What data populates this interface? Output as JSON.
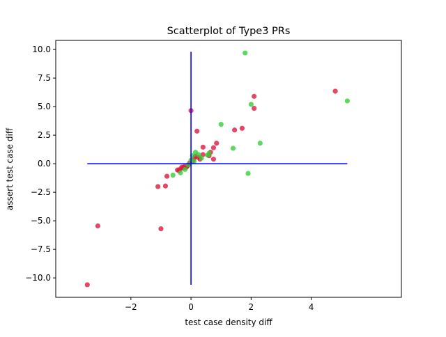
{
  "chart_data": {
    "type": "scatter",
    "title": "Scatterplot of Type3 PRs",
    "xlabel": "test case density diff",
    "ylabel": "assert test case diff",
    "xlim": [
      -4.5,
      7.0
    ],
    "ylim": [
      -11.7,
      10.8
    ],
    "x_ticks": [
      -2,
      0,
      2,
      4
    ],
    "x_tick_labels": [
      "−2",
      "0",
      "2",
      "4"
    ],
    "y_ticks": [
      10,
      7.5,
      5,
      2.5,
      0,
      -2.5,
      -5,
      -7.5,
      -10
    ],
    "y_tick_labels": [
      "10.0",
      "7.5",
      "5.0",
      "2.5",
      "0.0",
      "−2.5",
      "−5.0",
      "−7.5",
      "−10.0"
    ],
    "grid": false,
    "legend": "none",
    "reference_lines": {
      "color": "#0000ff",
      "horizontal": {
        "y": 0,
        "x_from": -3.45,
        "x_to": 5.2
      },
      "vertical": {
        "x": 0,
        "y_from": -10.6,
        "y_to": 9.8
      }
    },
    "series": [
      {
        "color": "#dc143c",
        "points": [
          {
            "x": -3.45,
            "y": -10.6
          },
          {
            "x": -3.1,
            "y": -5.45
          },
          {
            "x": -1.0,
            "y": -5.7
          },
          {
            "x": -1.1,
            "y": -2.0
          },
          {
            "x": -0.85,
            "y": -1.95
          },
          {
            "x": -0.8,
            "y": -1.1
          },
          {
            "x": -0.45,
            "y": -0.55
          },
          {
            "x": -0.4,
            "y": -0.6
          },
          {
            "x": -0.35,
            "y": -0.45
          },
          {
            "x": -0.3,
            "y": -0.3
          },
          {
            "x": -0.25,
            "y": -0.35
          },
          {
            "x": -0.2,
            "y": -0.2
          },
          {
            "x": -0.15,
            "y": -0.3
          },
          {
            "x": -0.1,
            "y": -0.15
          },
          {
            "x": -0.05,
            "y": 0.05
          },
          {
            "x": 0.0,
            "y": 4.65
          },
          {
            "x": 0.05,
            "y": 0.2
          },
          {
            "x": 0.1,
            "y": 0.45
          },
          {
            "x": 0.15,
            "y": 0.65
          },
          {
            "x": 0.2,
            "y": 2.85
          },
          {
            "x": 0.25,
            "y": 0.55
          },
          {
            "x": 0.3,
            "y": 0.4
          },
          {
            "x": 0.4,
            "y": 1.45
          },
          {
            "x": 0.4,
            "y": 0.8
          },
          {
            "x": 0.6,
            "y": 0.7
          },
          {
            "x": 0.65,
            "y": 1.0
          },
          {
            "x": 0.75,
            "y": 1.4
          },
          {
            "x": 0.75,
            "y": 0.4
          },
          {
            "x": 0.85,
            "y": 1.8
          },
          {
            "x": 1.45,
            "y": 2.95
          },
          {
            "x": 1.7,
            "y": 3.1
          },
          {
            "x": 2.1,
            "y": 5.9
          },
          {
            "x": 2.1,
            "y": 4.85
          },
          {
            "x": 4.8,
            "y": 6.35
          }
        ]
      },
      {
        "color": "#32cd32",
        "points": [
          {
            "x": -0.6,
            "y": -1.0
          },
          {
            "x": -0.35,
            "y": -0.8
          },
          {
            "x": -0.2,
            "y": -0.5
          },
          {
            "x": -0.1,
            "y": -0.1
          },
          {
            "x": 0.0,
            "y": 0.3
          },
          {
            "x": 0.05,
            "y": 0.7
          },
          {
            "x": 0.1,
            "y": 0.2
          },
          {
            "x": 0.15,
            "y": 1.0
          },
          {
            "x": 0.25,
            "y": 0.8
          },
          {
            "x": 0.35,
            "y": 0.5
          },
          {
            "x": 0.55,
            "y": 0.75
          },
          {
            "x": 0.6,
            "y": 0.9
          },
          {
            "x": 1.0,
            "y": 3.45
          },
          {
            "x": 1.4,
            "y": 1.35
          },
          {
            "x": 1.8,
            "y": 9.7
          },
          {
            "x": 1.9,
            "y": -0.85
          },
          {
            "x": 2.0,
            "y": 5.2
          },
          {
            "x": 2.3,
            "y": 1.8
          },
          {
            "x": 5.2,
            "y": 5.5
          }
        ]
      }
    ]
  }
}
